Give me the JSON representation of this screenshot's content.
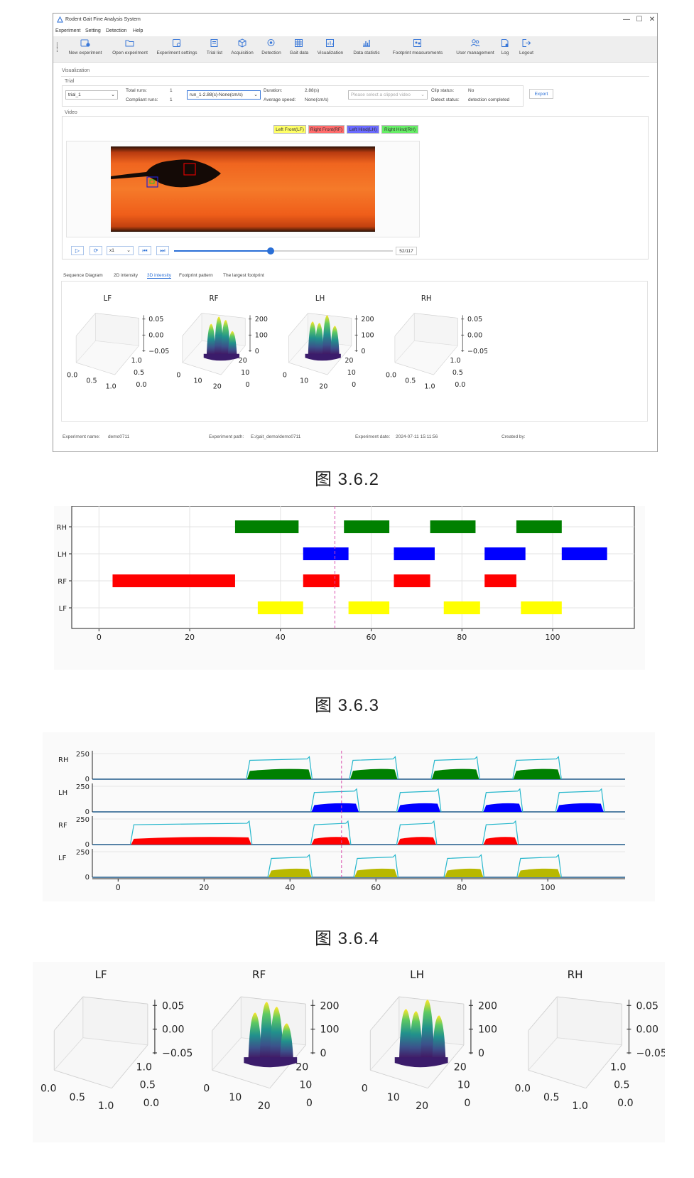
{
  "window": {
    "title": "Rodent Gait Fine Analysis System",
    "controls": [
      "—",
      "☐",
      "✕"
    ]
  },
  "menu": [
    "Experiment",
    "Setting",
    "Detection",
    "Help"
  ],
  "toolbar": [
    {
      "label": "New experiment",
      "icon": "new-experiment-icon"
    },
    {
      "label": "Open experiment",
      "icon": "folder-open-icon"
    },
    {
      "label": "Experiment settings",
      "icon": "settings-icon"
    },
    {
      "label": "Trial list",
      "icon": "list-icon"
    },
    {
      "label": "Acquisition",
      "icon": "cube-icon"
    },
    {
      "label": "Detection",
      "icon": "detection-icon"
    },
    {
      "label": "Gait data",
      "icon": "grid-icon"
    },
    {
      "label": "Visualization",
      "icon": "chart-icon"
    },
    {
      "label": "Data statistic",
      "icon": "bar-chart-icon"
    },
    {
      "label": "Footprint measurements",
      "icon": "footprint-icon"
    },
    {
      "label": "User management",
      "icon": "users-icon"
    },
    {
      "label": "Log",
      "icon": "log-icon"
    },
    {
      "label": "Logout",
      "icon": "logout-icon"
    }
  ],
  "visualization_label": "Visualization",
  "trial": {
    "group_label": "Trial",
    "trial_select": "trial_1",
    "total_runs_label": "Total runs:",
    "total_runs": "1",
    "compliant_runs_label": "Compliant runs:",
    "compliant_runs": "1",
    "run_select": "run_1-2.88(s)-None(cm/s)",
    "duration_label": "Duration:",
    "duration": "2.88(s)",
    "avg_speed_label": "Average speed:",
    "avg_speed": "None(cm/s)",
    "clip_placeholder": "Please select a clipped video",
    "clip_status_label": "Clip status:",
    "clip_status": "No",
    "detect_status_label": "Detect status:",
    "detect_status": "detection completed",
    "export_label": "Export"
  },
  "video": {
    "group_label": "Video",
    "legend": [
      {
        "label": "Left Front(LF)",
        "color": "#ffff66"
      },
      {
        "label": "Right Front(RF)",
        "color": "#ff6b6b"
      },
      {
        "label": "Left Hind(LH)",
        "color": "#6b6bff"
      },
      {
        "label": "Right Hind(RH)",
        "color": "#66ee66"
      }
    ],
    "speed": "x1",
    "frame": "52/117",
    "progress": 0.44
  },
  "tabs": [
    "Sequence Diagram",
    "2D intensity",
    "3D intensity",
    "Footprint pattern",
    "The largest footprint"
  ],
  "active_tab": "3D intensity",
  "footer": {
    "name_label": "Experiment name:",
    "name": "demo0711",
    "path_label": "Experiment path:",
    "path": "E:/gait_demo/demo0711",
    "date_label": "Experiment date:",
    "date": "2024-07-11 15:11:56",
    "created_label": "Created by:"
  },
  "captions": [
    "图 3.6.2",
    "图 3.6.3",
    "图 3.6.4"
  ],
  "chart_data": [
    {
      "type": "surface3d",
      "panels": [
        "LF",
        "RF",
        "LH",
        "RH"
      ],
      "empty_z_ticks": [
        "0.05",
        "0.00",
        "−0.05"
      ],
      "empty_x_ticks": [
        "0.0",
        "0.5",
        "1.0"
      ],
      "empty_y_ticks": [
        "0.0",
        "0.5",
        "1.0"
      ],
      "filled_z_ticks": [
        "200",
        "100",
        "0"
      ],
      "filled_x_ticks": [
        "0",
        "10",
        "20"
      ],
      "filled_y_ticks": [
        "0",
        "10",
        "20"
      ]
    },
    {
      "type": "bar",
      "subtype": "gantt",
      "categories": [
        "RH",
        "LH",
        "RF",
        "LF"
      ],
      "xlim": [
        -6,
        118
      ],
      "x_ticks": [
        0,
        20,
        40,
        60,
        80,
        100
      ],
      "marker_x": 52,
      "series": [
        {
          "category": "RH",
          "color": "#008000",
          "segments": [
            [
              30,
              44
            ],
            [
              54,
              64
            ],
            [
              73,
              83
            ],
            [
              92,
              102
            ]
          ]
        },
        {
          "category": "LH",
          "color": "#0000ff",
          "segments": [
            [
              45,
              55
            ],
            [
              65,
              74
            ],
            [
              85,
              94
            ],
            [
              102,
              112
            ]
          ]
        },
        {
          "category": "RF",
          "color": "#ff0000",
          "segments": [
            [
              3,
              30
            ],
            [
              45,
              53
            ],
            [
              65,
              73
            ],
            [
              85,
              92
            ]
          ]
        },
        {
          "category": "LF",
          "color": "#ffff00",
          "segments": [
            [
              35,
              45
            ],
            [
              55,
              64
            ],
            [
              76,
              84
            ],
            [
              93,
              102
            ]
          ]
        }
      ]
    },
    {
      "type": "area",
      "panels": [
        "RH",
        "LH",
        "RF",
        "LF"
      ],
      "ylim": [
        0,
        250
      ],
      "y_ticks": [
        "250",
        "0"
      ],
      "xlim": [
        -6,
        118
      ],
      "x_ticks": [
        0,
        20,
        40,
        60,
        80,
        100
      ],
      "marker_x": 52,
      "series": [
        {
          "name": "RH",
          "color": "#008000",
          "segments": [
            [
              30,
              45
            ],
            [
              54,
              65
            ],
            [
              73,
              84
            ],
            [
              92,
              103
            ]
          ],
          "area_level": 95,
          "line_level": 205
        },
        {
          "name": "LH",
          "color": "#0000ff",
          "segments": [
            [
              45,
              56
            ],
            [
              65,
              75
            ],
            [
              85,
              94
            ],
            [
              102,
              113
            ]
          ],
          "area_level": 80,
          "line_level": 210
        },
        {
          "name": "RF",
          "color": "#ff0000",
          "segments": [
            [
              3,
              31
            ],
            [
              45,
              54
            ],
            [
              65,
              74
            ],
            [
              85,
              93
            ]
          ],
          "area_level": 70,
          "line_level": 215
        },
        {
          "name": "LF",
          "color": "#b8b800",
          "segments": [
            [
              35,
              45
            ],
            [
              55,
              65
            ],
            [
              76,
              85
            ],
            [
              93,
              103
            ]
          ],
          "area_level": 80,
          "line_level": 205
        }
      ]
    },
    {
      "type": "surface3d",
      "panels": [
        "LF",
        "RF",
        "LH",
        "RH"
      ],
      "empty_z_ticks": [
        "0.05",
        "0.00",
        "−0.05"
      ],
      "empty_x_ticks": [
        "0.0",
        "0.5",
        "1.0"
      ],
      "empty_y_ticks": [
        "0.0",
        "0.5",
        "1.0"
      ],
      "filled_z_ticks": [
        "200",
        "100",
        "0"
      ],
      "filled_x_ticks": [
        "0",
        "10",
        "20"
      ],
      "filled_y_ticks": [
        "0",
        "10",
        "20"
      ]
    }
  ]
}
